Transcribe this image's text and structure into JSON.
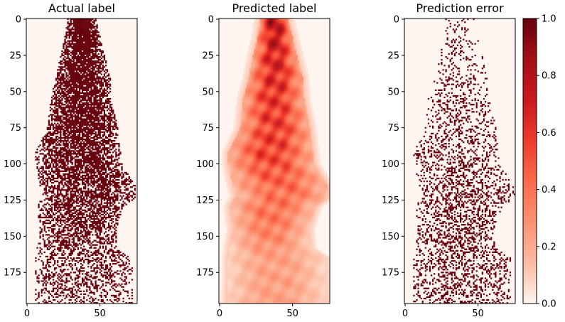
{
  "chart_data": [
    {
      "type": "heatmap",
      "title": "Actual label",
      "kind": "binary",
      "xlim": [
        -0.5,
        75.5
      ],
      "ylim": [
        196.5,
        -0.5
      ],
      "xticks": [
        0,
        50
      ],
      "yticks": [
        0,
        25,
        50,
        75,
        100,
        125,
        150,
        175
      ],
      "value_range": [
        0,
        1
      ],
      "colormap": "Reds",
      "profile": {
        "rows": [
          0,
          12,
          25,
          40,
          55,
          75,
          92,
          100,
          115,
          122,
          130,
          145,
          158,
          165,
          180,
          196
        ],
        "left_edge": [
          28,
          26,
          23,
          20,
          16,
          14,
          6,
          6,
          9,
          11,
          7,
          9,
          7,
          6,
          6,
          5
        ],
        "right_edge": [
          47,
          50,
          53,
          57,
          58,
          62,
          64,
          65,
          74,
          76,
          66,
          61,
          62,
          72,
          72,
          73
        ],
        "density": [
          1.0,
          0.95,
          0.9,
          0.88,
          0.85,
          0.82,
          0.78,
          0.74,
          0.68,
          0.66,
          0.65,
          0.62,
          0.45,
          0.4,
          0.38,
          0.35
        ]
      }
    },
    {
      "type": "heatmap",
      "title": "Predicted label",
      "kind": "continuous",
      "xlim": [
        -0.5,
        75.5
      ],
      "ylim": [
        196.5,
        -0.5
      ],
      "xticks": [
        0,
        50
      ],
      "yticks": [
        0,
        25,
        50,
        75,
        100,
        125,
        150,
        175
      ],
      "value_range": [
        0,
        1
      ],
      "colormap": "Reds",
      "profile": {
        "rows": [
          0,
          12,
          25,
          40,
          55,
          75,
          92,
          100,
          115,
          122,
          130,
          145,
          158,
          165,
          180,
          196
        ],
        "left_edge": [
          28,
          26,
          23,
          20,
          16,
          14,
          6,
          6,
          9,
          11,
          7,
          9,
          7,
          6,
          6,
          5
        ],
        "right_edge": [
          47,
          50,
          53,
          57,
          58,
          62,
          64,
          65,
          74,
          76,
          66,
          61,
          62,
          72,
          72,
          73
        ],
        "density": [
          1.0,
          0.92,
          0.85,
          0.8,
          0.75,
          0.72,
          0.7,
          0.65,
          0.55,
          0.5,
          0.5,
          0.45,
          0.35,
          0.3,
          0.3,
          0.3
        ]
      }
    },
    {
      "type": "heatmap",
      "title": "Prediction error",
      "kind": "binary",
      "xlim": [
        -0.5,
        75.5
      ],
      "ylim": [
        196.5,
        -0.5
      ],
      "xticks": [
        0,
        50
      ],
      "yticks": [
        0,
        25,
        50,
        75,
        100,
        125,
        150,
        175
      ],
      "value_range": [
        0,
        1
      ],
      "colormap": "Reds",
      "profile": {
        "rows": [
          0,
          12,
          25,
          40,
          55,
          75,
          92,
          100,
          115,
          122,
          130,
          145,
          158,
          165,
          180,
          196
        ],
        "left_edge": [
          28,
          26,
          23,
          20,
          16,
          14,
          6,
          6,
          9,
          11,
          7,
          9,
          7,
          6,
          6,
          5
        ],
        "right_edge": [
          47,
          50,
          53,
          57,
          58,
          62,
          64,
          65,
          74,
          76,
          66,
          61,
          62,
          72,
          72,
          73
        ],
        "density": [
          0.12,
          0.15,
          0.18,
          0.2,
          0.22,
          0.25,
          0.3,
          0.32,
          0.35,
          0.38,
          0.4,
          0.42,
          0.36,
          0.34,
          0.33,
          0.32
        ]
      }
    }
  ],
  "colorbar": {
    "ticks": [
      "0.0",
      "0.2",
      "0.4",
      "0.6",
      "0.8",
      "1.0"
    ],
    "tick_values": [
      0,
      0.2,
      0.4,
      0.6,
      0.8,
      1.0
    ],
    "colormap": "Reds",
    "colors": [
      "#fff5f0",
      "#fcbba1",
      "#fc9272",
      "#fb6a4a",
      "#ef3b2c",
      "#cb181d",
      "#a50f15",
      "#67000d"
    ]
  }
}
